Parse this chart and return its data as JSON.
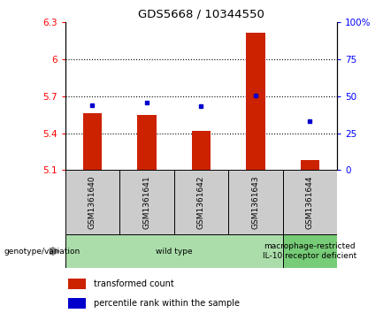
{
  "title": "GDS5668 / 10344550",
  "samples": [
    "GSM1361640",
    "GSM1361641",
    "GSM1361642",
    "GSM1361643",
    "GSM1361644"
  ],
  "bar_values": [
    5.56,
    5.55,
    5.42,
    6.22,
    5.18
  ],
  "percentile_values": [
    5.63,
    5.65,
    5.62,
    5.71,
    5.5
  ],
  "bar_bottom": 5.1,
  "ylim_left": [
    5.1,
    6.3
  ],
  "ylim_right": [
    0,
    100
  ],
  "yticks_left": [
    5.1,
    5.4,
    5.7,
    6.0,
    6.3
  ],
  "yticks_right": [
    0,
    25,
    50,
    75,
    100
  ],
  "ytick_labels_left": [
    "5.1",
    "5.4",
    "5.7",
    "6",
    "6.3"
  ],
  "ytick_labels_right": [
    "0",
    "25",
    "50",
    "75",
    "100%"
  ],
  "hlines": [
    5.4,
    5.7,
    6.0
  ],
  "bar_color": "#CC2200",
  "percentile_color": "#0000CC",
  "bar_width": 0.35,
  "groups": [
    {
      "label": "wild type",
      "start": 0,
      "end": 3,
      "color": "#aaddaa"
    },
    {
      "label": "macrophage-restricted\nIL-10 receptor deficient",
      "start": 4,
      "end": 4,
      "color": "#77cc77"
    }
  ],
  "genotype_label": "genotype/variation",
  "legend_items": [
    {
      "color": "#CC2200",
      "label": "transformed count"
    },
    {
      "color": "#0000CC",
      "label": "percentile rank within the sample"
    }
  ],
  "bg_color": "#ffffff",
  "plot_bg": "#ffffff",
  "label_area_color": "#cccccc"
}
